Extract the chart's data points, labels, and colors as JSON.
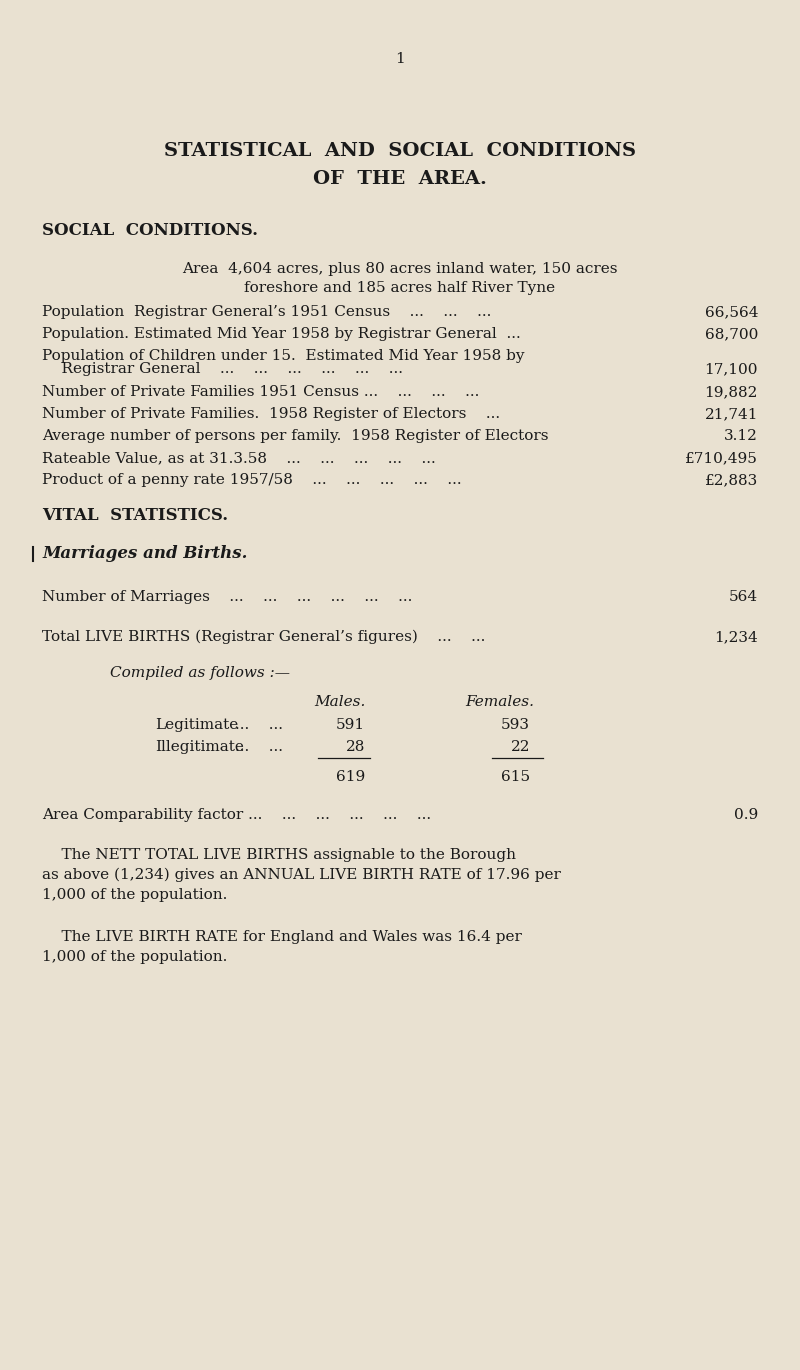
{
  "bg_color": "#e9e1d1",
  "text_color": "#1a1a1a",
  "page_number": "1",
  "title_line1": "STATISTICAL  AND  SOCIAL  CONDITIONS",
  "title_line2": "OF  THE  AREA.",
  "section1_header": "SOCIAL  CONDITIONS.",
  "area_line1": "Area  4,604 acres, plus 80 acres inland water, 150 acres",
  "area_line2": "foreshore and 185 acres half River Tyne",
  "row_labels": [
    "Population  Registrar General’s 1951 Census    ...    ...    ...",
    "Population. Estimated Mid Year 1958 by Registrar General  ...",
    "Population of Children under 15.  Estimated Mid Year 1958 by",
    "    Registrar General    ...    ...    ...    ...    ...    ...",
    "Number of Private Families 1951 Census ...    ...    ...    ...",
    "Number of Private Families.  1958 Register of Electors    ...",
    "Average number of persons per family.  1958 Register of Electors",
    "Rateable Value, as at 31.3.58    ...    ...    ...    ...    ...",
    "Product of a penny rate 1957/58    ...    ...    ...    ...    ..."
  ],
  "row_values": [
    "66,564",
    "68,700",
    "",
    "17,100",
    "19,882",
    "21,741",
    "3.12",
    "£710,495",
    "£2,883"
  ],
  "section2_header": "VITAL  STATISTICS.",
  "section3_header": "Marriages and Births.",
  "marriages_label": "Number of Marriages    ...    ...    ...    ...    ...    ...",
  "marriages_value": "564",
  "births_label": "Total LIVE BIRTHS (Registrar General’s figures)    ...    ...",
  "births_value": "1,234",
  "compiled_label": "Compiled as follows :—",
  "males_header": "Males.",
  "females_header": "Females.",
  "legit_label": "Legitimate",
  "legit_dots": "...    ...",
  "legit_male": "591",
  "legit_female": "593",
  "illegit_label": "Illegitimate",
  "illegit_dots": "...    ...",
  "illegit_male": "28",
  "illegit_female": "22",
  "total_male": "619",
  "total_female": "615",
  "comparability_label": "Area Comparability factor ...    ...    ...    ...    ...    ...",
  "comparability_value": "0.9",
  "para1_indent": "    The NETT TOTAL LIVE BIRTHS assignable to the Borough",
  "para1_line2": "as above (1,234) gives an ANNUAL LIVE BIRTH RATE of 17.96 per",
  "para1_line3": "1,000 of the population.",
  "para2_indent": "    The LIVE BIRTH RATE for England and Wales was 16.4 per",
  "para2_line2": "1,000 of the population."
}
